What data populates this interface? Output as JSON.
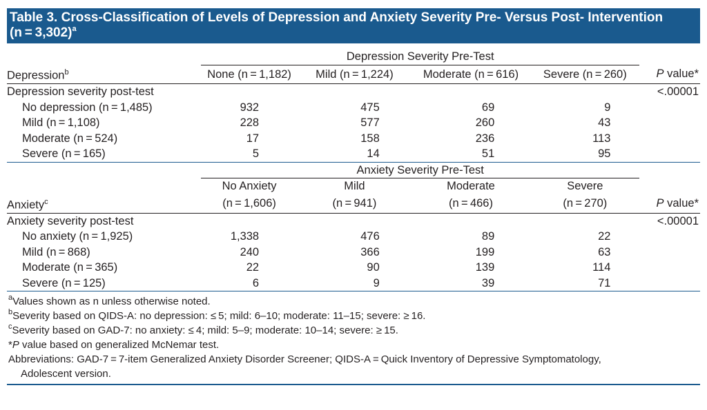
{
  "title": {
    "text": "Table 3. Cross-Classification of Levels of Depression and Anxiety Severity Pre- Versus Post- Intervention",
    "line2": "(n = 3,302)",
    "sup": "a"
  },
  "depression": {
    "group_header": "Depression Severity Pre-Test",
    "row_label": "Depression",
    "row_label_sup": "b",
    "columns": [
      "None (n = 1,182)",
      "Mild (n = 1,224)",
      "Moderate (n = 616)",
      "Severe (n = 260)"
    ],
    "p_label_italic": "P",
    "p_label_rest": " value*",
    "section_label": "Depression severity post-test",
    "p_value": "<.00001",
    "rows": [
      {
        "label": "No depression (n = 1,485)",
        "values": [
          "932",
          "475",
          "69",
          "9"
        ]
      },
      {
        "label": "Mild (n = 1,108)",
        "values": [
          "228",
          "577",
          "260",
          "43"
        ]
      },
      {
        "label": "Moderate (n = 524)",
        "values": [
          "17",
          "158",
          "236",
          "113"
        ]
      },
      {
        "label": "Severe (n = 165)",
        "values": [
          "5",
          "14",
          "51",
          "95"
        ]
      }
    ]
  },
  "anxiety": {
    "group_header": "Anxiety Severity Pre-Test",
    "row_label": "Anxiety",
    "row_label_sup": "c",
    "columns": [
      {
        "top": "No Anxiety",
        "bottom": "(n = 1,606)"
      },
      {
        "top": "Mild",
        "bottom": "(n = 941)"
      },
      {
        "top": "Moderate",
        "bottom": "(n = 466)"
      },
      {
        "top": "Severe",
        "bottom": "(n = 270)"
      }
    ],
    "p_label_italic": "P",
    "p_label_rest": " value*",
    "section_label": "Anxiety severity post-test",
    "p_value": "<.00001",
    "rows": [
      {
        "label": "No anxiety (n = 1,925)",
        "values": [
          "1,338",
          "476",
          "89",
          "22"
        ]
      },
      {
        "label": "Mild (n = 868)",
        "values": [
          "240",
          "366",
          "199",
          "63"
        ]
      },
      {
        "label": "Moderate (n = 365)",
        "values": [
          "22",
          "90",
          "139",
          "114"
        ]
      },
      {
        "label": "Severe (n = 125)",
        "values": [
          "6",
          "9",
          "39",
          "71"
        ]
      }
    ]
  },
  "notes": {
    "a_sup": "a",
    "a": "Values shown as n unless otherwise noted.",
    "b_sup": "b",
    "b": "Severity based on QIDS-A: no depression: ≤ 5; mild: 6–10; moderate: 11–15; severe: ≥ 16.",
    "c_sup": "c",
    "c": "Severity based on GAD-7: no anxiety: ≤ 4; mild: 5–9; moderate: 10–14; severe: ≥ 15.",
    "star_prefix": "*",
    "star_italic": "P",
    "star_rest": " value based on generalized McNemar test.",
    "abbrev_line1": "Abbreviations: GAD-7 = 7-item Generalized Anxiety Disorder Screener; QIDS-A = Quick Inventory of Depressive Symptomatology,",
    "abbrev_line2": "Adolescent version."
  },
  "colors": {
    "title_bg": "#1a5a8e",
    "title_text": "#ffffff",
    "rule": "#1a5a8e"
  }
}
